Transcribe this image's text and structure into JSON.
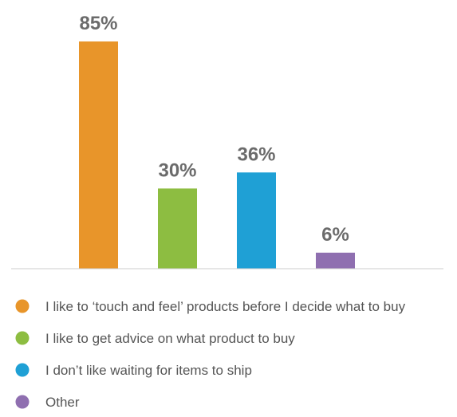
{
  "chart_data": {
    "type": "bar",
    "categories": [
      "I like to ‘touch and feel’ products before I decide what to buy",
      "I like to get advice on what product to buy",
      "I don’t like waiting for items to ship",
      "Other"
    ],
    "values": [
      85,
      30,
      36,
      6
    ],
    "value_labels": [
      "85%",
      "30%",
      "36%",
      "6%"
    ],
    "colors": [
      "#E8952A",
      "#8DBD41",
      "#1FA0D5",
      "#8F6FB0"
    ],
    "ylim": [
      0,
      85
    ],
    "grid": false,
    "legend": "bottom",
    "title": "",
    "xlabel": "",
    "ylabel": ""
  }
}
